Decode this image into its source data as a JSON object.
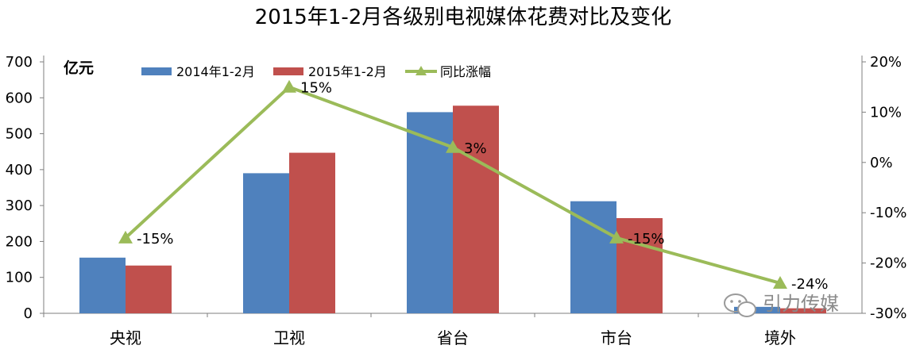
{
  "chart_data": {
    "type": "bar",
    "title": "2015年1-2月各级别电视媒体花费对比及变化",
    "ylabel": "亿元",
    "categories": [
      "央视",
      "卫视",
      "省台",
      "市台",
      "境外"
    ],
    "series": [
      {
        "name": "2014年1-2月",
        "type": "bar",
        "axis": "left",
        "color": "#4f81bd",
        "values": [
          155,
          390,
          560,
          312,
          18
        ]
      },
      {
        "name": "2015年1-2月",
        "type": "bar",
        "axis": "left",
        "color": "#c0504d",
        "values": [
          133,
          447,
          578,
          265,
          14
        ]
      },
      {
        "name": "同比涨幅",
        "type": "line",
        "axis": "right",
        "color": "#9bbb59",
        "values": [
          -15,
          15,
          3,
          -15,
          -24
        ],
        "labels": [
          "-15%",
          "15%",
          "3%",
          "-15%",
          "-24%"
        ]
      }
    ],
    "y_left": {
      "ylim": [
        0,
        700
      ],
      "ticks": [
        "0",
        "100",
        "200",
        "300",
        "400",
        "500",
        "600",
        "700"
      ]
    },
    "y_right": {
      "ylim": [
        -30,
        20
      ],
      "ticks": [
        "-30%",
        "-20%",
        "-10%",
        "0%",
        "10%",
        "20%"
      ]
    },
    "grid": false,
    "legend": "top"
  },
  "watermark": {
    "text": "引力传媒",
    "icon": "wechat-icon"
  }
}
